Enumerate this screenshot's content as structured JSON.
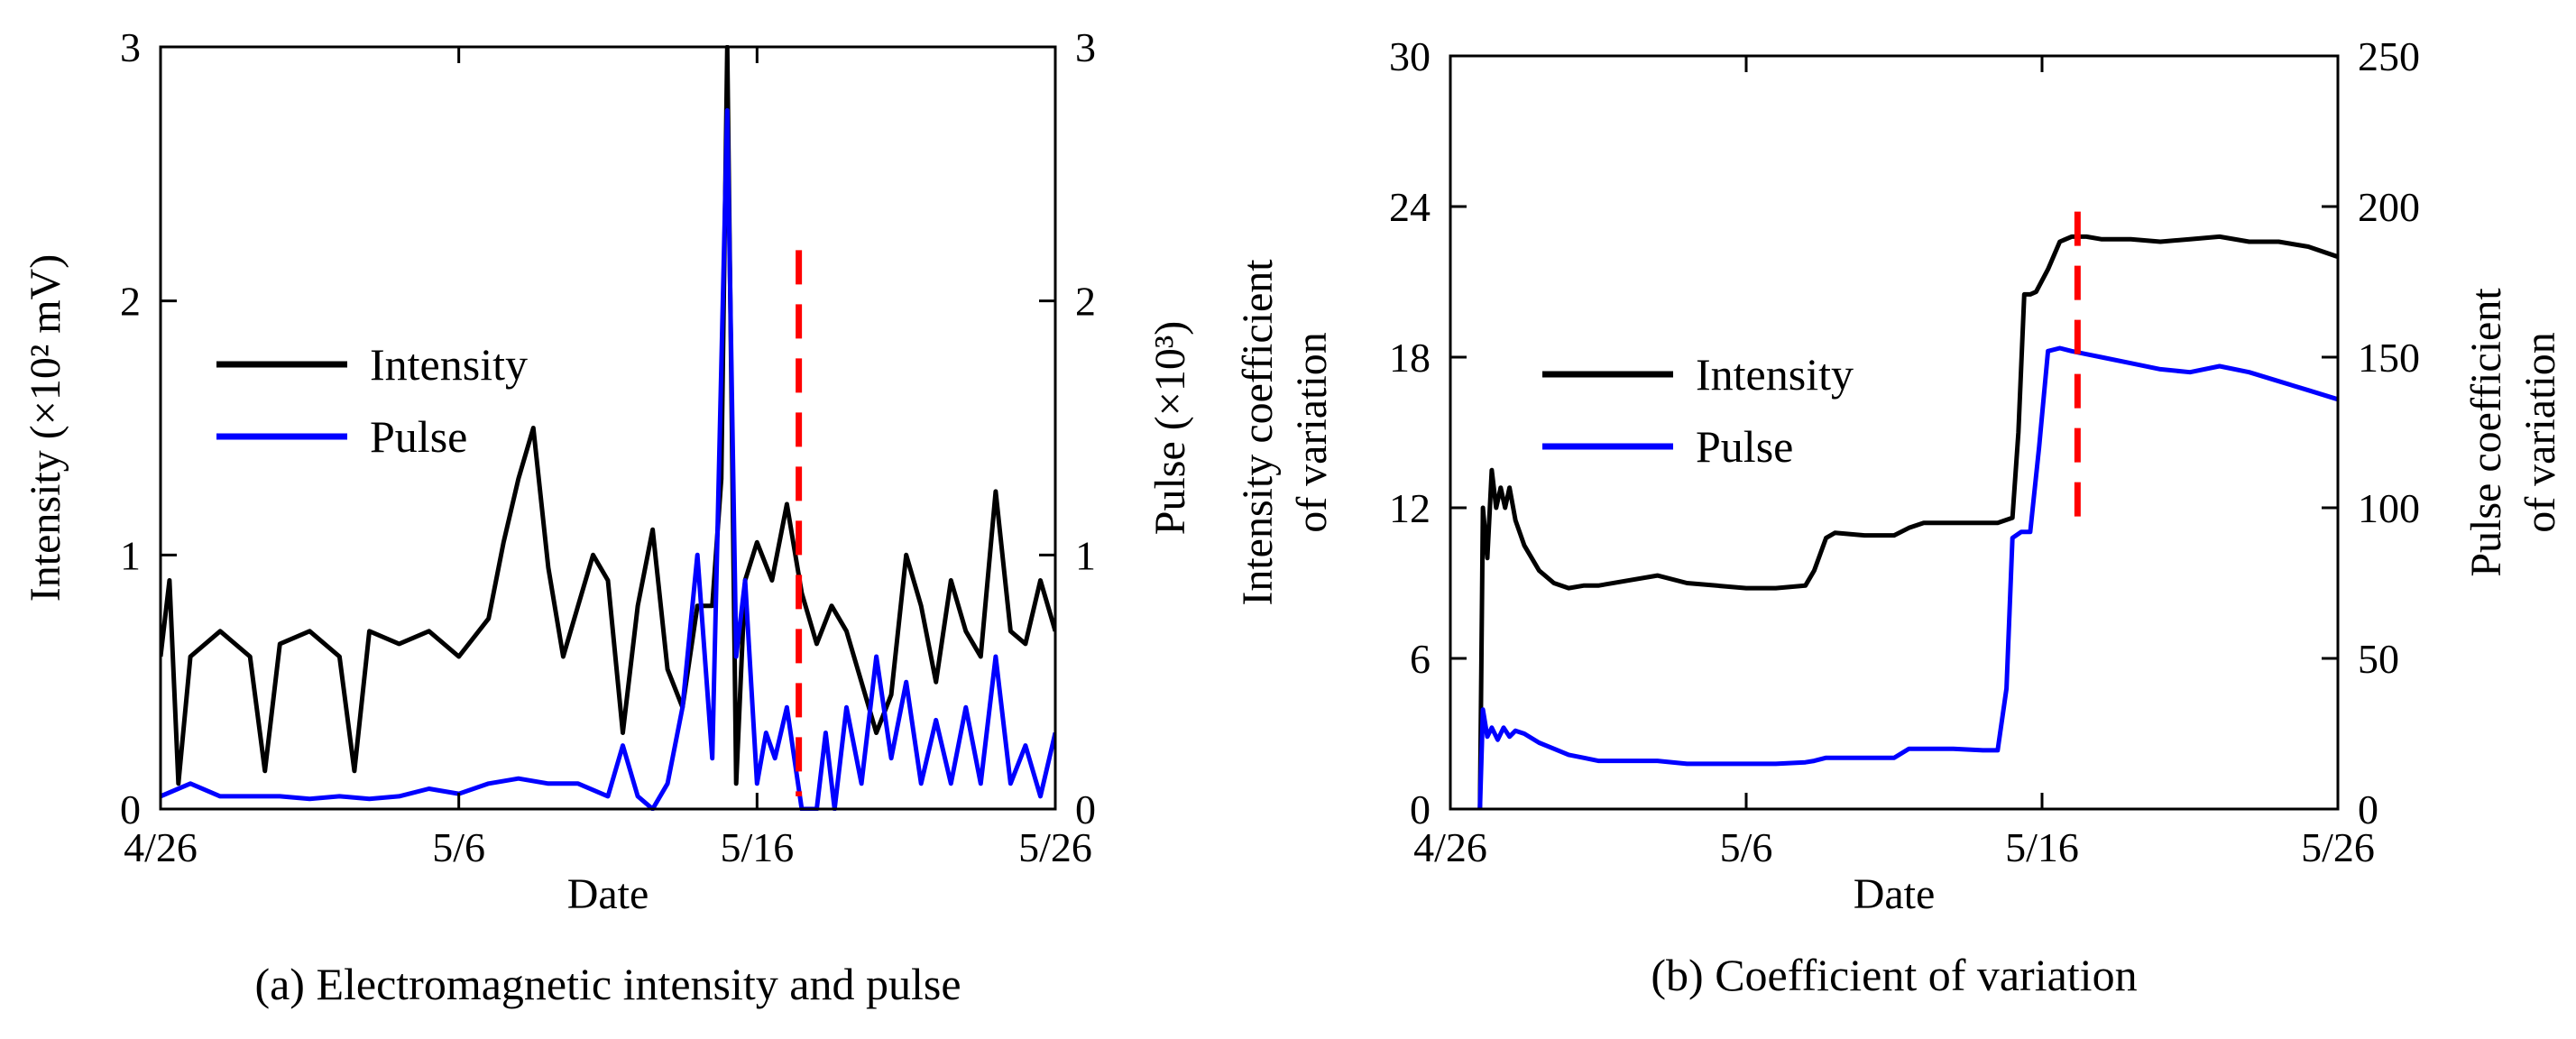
{
  "chart_data": [
    {
      "type": "line",
      "caption": "(a) Electromagnetic intensity and pulse",
      "xlabel": "Date",
      "ylabel_left": "Intensity (×10² mV)",
      "ylabel_right": "Pulse (×10³)",
      "x_ticks": [
        "4/26",
        "5/6",
        "5/16",
        "5/26"
      ],
      "x_tick_days": [
        0,
        10,
        20,
        30
      ],
      "xlim": [
        0,
        30
      ],
      "ylim_left": [
        0,
        3
      ],
      "ylim_right": [
        0,
        3
      ],
      "y_ticks_left": [
        "0",
        "1",
        "2",
        "3"
      ],
      "y_ticks_right": [
        "0",
        "1",
        "2",
        "3"
      ],
      "legend": [
        {
          "name": "Intensity",
          "color": "#000000"
        },
        {
          "name": "Pulse",
          "color": "#0000ff"
        }
      ],
      "series": [
        {
          "name": "Intensity",
          "color": "#000000",
          "axis": "left",
          "x": [
            0,
            0.3,
            0.6,
            1,
            2,
            3,
            3.5,
            4,
            5,
            6,
            6.5,
            7,
            8,
            9,
            10,
            11,
            11.5,
            12,
            12.5,
            13,
            13.5,
            14,
            14.5,
            15,
            15.5,
            16,
            16.5,
            17,
            17.5,
            18,
            18.5,
            18.8,
            19,
            19.3,
            19.6,
            20,
            20.5,
            21,
            21.5,
            22,
            22.5,
            23,
            23.5,
            24,
            24.5,
            25,
            25.5,
            26,
            26.5,
            27,
            27.5,
            28,
            28.5,
            29,
            29.5,
            30
          ],
          "y": [
            0.6,
            0.9,
            0.1,
            0.6,
            0.7,
            0.6,
            0.15,
            0.65,
            0.7,
            0.6,
            0.15,
            0.7,
            0.65,
            0.7,
            0.6,
            0.75,
            1.05,
            1.3,
            1.5,
            0.95,
            0.6,
            0.8,
            1.0,
            0.9,
            0.3,
            0.8,
            1.1,
            0.55,
            0.4,
            0.8,
            0.8,
            1.3,
            3.0,
            0.1,
            0.9,
            1.05,
            0.9,
            1.2,
            0.85,
            0.65,
            0.8,
            0.7,
            0.5,
            0.3,
            0.45,
            1.0,
            0.8,
            0.5,
            0.9,
            0.7,
            0.6,
            1.25,
            0.7,
            0.65,
            0.9,
            0.7
          ]
        },
        {
          "name": "Pulse",
          "color": "#0000ff",
          "axis": "right",
          "x": [
            0,
            1,
            2,
            3,
            4,
            5,
            6,
            7,
            8,
            9,
            10,
            11,
            12,
            13,
            14,
            15,
            15.5,
            16,
            16.5,
            17,
            17.5,
            18,
            18.5,
            19,
            19.3,
            19.6,
            20,
            20.3,
            20.6,
            21,
            21.5,
            22,
            22.3,
            22.6,
            23,
            23.5,
            24,
            24.5,
            25,
            25.5,
            26,
            26.5,
            27,
            27.5,
            28,
            28.5,
            29,
            29.5,
            30
          ],
          "y": [
            0.05,
            0.1,
            0.05,
            0.05,
            0.05,
            0.04,
            0.05,
            0.04,
            0.05,
            0.08,
            0.06,
            0.1,
            0.12,
            0.1,
            0.1,
            0.05,
            0.25,
            0.05,
            0.0,
            0.1,
            0.4,
            1.0,
            0.2,
            2.75,
            0.6,
            0.9,
            0.1,
            0.3,
            0.2,
            0.4,
            0.0,
            0.0,
            0.3,
            0.0,
            0.4,
            0.1,
            0.6,
            0.2,
            0.5,
            0.1,
            0.35,
            0.1,
            0.4,
            0.1,
            0.6,
            0.1,
            0.25,
            0.05,
            0.3
          ]
        }
      ],
      "annotations": [
        {
          "type": "vertical-dashed-line",
          "color": "#ff0000",
          "x": 21.4,
          "y_range": [
            0.05,
            2.2
          ]
        }
      ]
    },
    {
      "type": "line",
      "caption": "(b) Coefficient of variation",
      "xlabel": "Date",
      "ylabel_left": [
        "Intensity coefficient",
        "of variation"
      ],
      "ylabel_right": [
        "Pulse coefficient",
        "of variation"
      ],
      "x_ticks": [
        "4/26",
        "5/6",
        "5/16",
        "5/26"
      ],
      "x_tick_days": [
        0,
        10,
        20,
        30
      ],
      "xlim": [
        0,
        30
      ],
      "ylim_left": [
        0,
        30
      ],
      "ylim_right": [
        0,
        250
      ],
      "y_ticks_left": [
        "0",
        "6",
        "12",
        "18",
        "24",
        "30"
      ],
      "y_ticks_right": [
        "0",
        "50",
        "100",
        "150",
        "200",
        "250"
      ],
      "legend": [
        {
          "name": "Intensity",
          "color": "#000000"
        },
        {
          "name": "Pulse",
          "color": "#0000ff"
        }
      ],
      "series": [
        {
          "name": "Intensity",
          "color": "#000000",
          "axis": "left",
          "x": [
            1,
            1.1,
            1.25,
            1.4,
            1.55,
            1.7,
            1.85,
            2.0,
            2.2,
            2.5,
            3,
            3.5,
            4,
            4.5,
            5,
            6,
            7,
            8,
            9,
            10,
            11,
            12,
            12.3,
            12.7,
            13,
            14,
            15,
            15.5,
            16,
            17,
            18,
            18.5,
            19,
            19.2,
            19.4,
            19.6,
            19.8,
            20.2,
            20.6,
            21,
            21.5,
            22,
            23,
            24,
            25,
            26,
            27,
            28,
            29,
            30
          ],
          "y": [
            0,
            12,
            10,
            13.5,
            12,
            12.8,
            12,
            12.8,
            11.5,
            10.5,
            9.5,
            9.0,
            8.8,
            8.9,
            8.9,
            9.1,
            9.3,
            9.0,
            8.9,
            8.8,
            8.8,
            8.9,
            9.5,
            10.8,
            11.0,
            10.9,
            10.9,
            11.2,
            11.4,
            11.4,
            11.4,
            11.4,
            11.6,
            15.0,
            20.5,
            20.5,
            20.6,
            21.5,
            22.6,
            22.8,
            22.8,
            22.7,
            22.7,
            22.6,
            22.7,
            22.8,
            22.6,
            22.6,
            22.4,
            22.0
          ]
        },
        {
          "name": "Pulse",
          "color": "#0000ff",
          "axis": "right",
          "x": [
            1,
            1.1,
            1.25,
            1.4,
            1.6,
            1.8,
            2.0,
            2.2,
            2.5,
            3,
            3.5,
            4,
            4.5,
            5,
            6,
            7,
            8,
            9,
            10,
            11,
            12,
            12.3,
            12.7,
            13,
            14,
            15,
            15.5,
            16,
            17,
            18,
            18.5,
            18.8,
            19.0,
            19.3,
            19.6,
            19.9,
            20.2,
            20.6,
            21,
            21.5,
            22,
            23,
            24,
            25,
            26,
            27,
            28,
            29,
            30
          ],
          "y": [
            0,
            33,
            24,
            27,
            23,
            27,
            24,
            26,
            25,
            22,
            20,
            18,
            17,
            16,
            16,
            16,
            15,
            15,
            15,
            15,
            15.5,
            16,
            17,
            17,
            17,
            17,
            20,
            20,
            20,
            19.5,
            19.5,
            40,
            90,
            92,
            92,
            120,
            152,
            153,
            152,
            151,
            150,
            148,
            146,
            145,
            147,
            145,
            142,
            139,
            136
          ]
        }
      ],
      "annotations": [
        {
          "type": "vertical-dashed-line",
          "color": "#ff0000",
          "x": 21.2,
          "y_range": [
            11.2,
            23.8
          ]
        }
      ]
    }
  ]
}
